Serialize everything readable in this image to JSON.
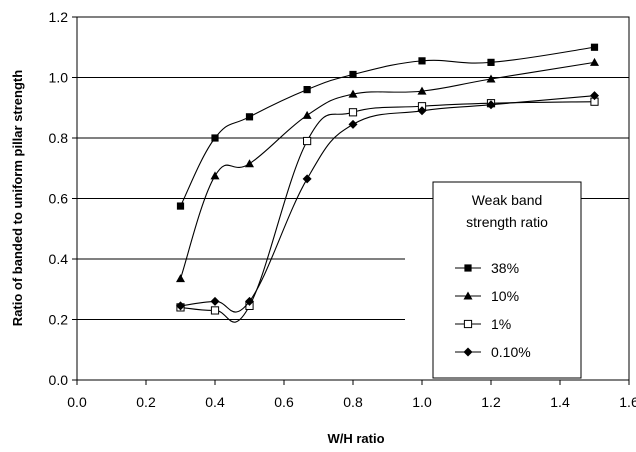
{
  "chart_data": {
    "type": "line",
    "title": "",
    "xlabel": "W/H ratio",
    "ylabel": "Ratio of banded to uniform pillar strength",
    "xlim": [
      0.0,
      1.6
    ],
    "ylim": [
      0.0,
      1.2
    ],
    "x_ticks": [
      "0.0",
      "0.2",
      "0.4",
      "0.6",
      "0.8",
      "1.0",
      "1.2",
      "1.4",
      "1.6"
    ],
    "y_ticks": [
      "0.0",
      "0.2",
      "0.4",
      "0.6",
      "0.8",
      "1.0",
      "1.2"
    ],
    "grid": "horizontal",
    "legend": {
      "title_lines": [
        "Weak band",
        "strength ratio"
      ],
      "placement": "right"
    },
    "series": [
      {
        "name": "38%",
        "marker": "filled-square",
        "x": [
          0.3,
          0.4,
          0.5,
          0.667,
          0.8,
          1.0,
          1.2,
          1.5
        ],
        "y": [
          0.575,
          0.8,
          0.87,
          0.96,
          1.01,
          1.055,
          1.05,
          1.1
        ]
      },
      {
        "name": "10%",
        "marker": "filled-triangle",
        "x": [
          0.3,
          0.4,
          0.5,
          0.667,
          0.8,
          1.0,
          1.2,
          1.5
        ],
        "y": [
          0.335,
          0.675,
          0.715,
          0.875,
          0.945,
          0.955,
          0.995,
          1.05
        ]
      },
      {
        "name": "1%",
        "marker": "open-square",
        "x": [
          0.3,
          0.4,
          0.5,
          0.667,
          0.8,
          1.0,
          1.2,
          1.5
        ],
        "y": [
          0.24,
          0.23,
          0.245,
          0.79,
          0.885,
          0.905,
          0.915,
          0.92
        ]
      },
      {
        "name": "0.10%",
        "marker": "filled-diamond",
        "x": [
          0.3,
          0.4,
          0.5,
          0.667,
          0.8,
          1.0,
          1.2,
          1.5
        ],
        "y": [
          0.245,
          0.26,
          0.26,
          0.665,
          0.845,
          0.89,
          0.91,
          0.94
        ]
      }
    ]
  }
}
